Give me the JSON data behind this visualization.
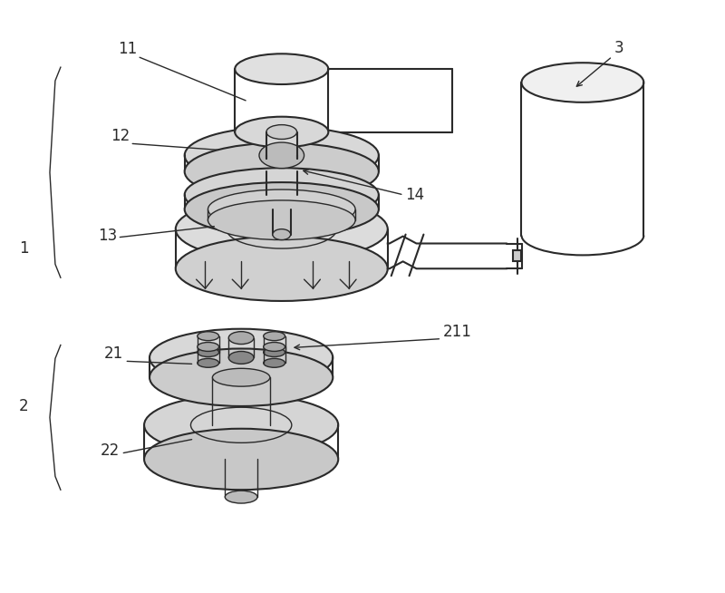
{
  "bg_color": "#ffffff",
  "line_color": "#2a2a2a",
  "lw": 1.5,
  "lw_thin": 1.0,
  "lw_thick": 2.0
}
